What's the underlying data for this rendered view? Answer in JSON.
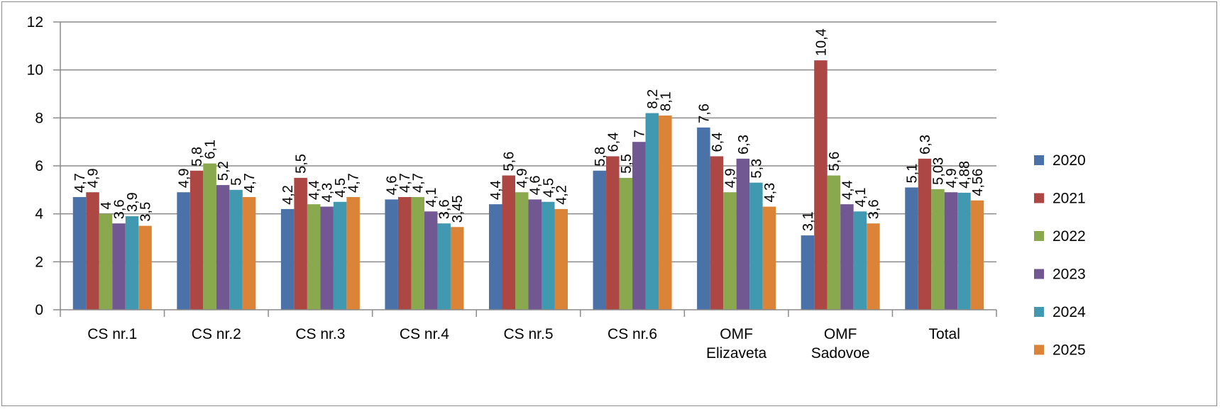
{
  "chart_data": {
    "type": "bar",
    "categories": [
      [
        "CS nr.1"
      ],
      [
        "CS nr.2"
      ],
      [
        "CS nr.3"
      ],
      [
        "CS nr.4"
      ],
      [
        "CS nr.5"
      ],
      [
        "CS nr.6"
      ],
      [
        "OMF",
        "Elizaveta"
      ],
      [
        "OMF",
        "Sadovoe"
      ],
      [
        "Total"
      ]
    ],
    "series": [
      {
        "name": "2020",
        "color": "#4a72a8",
        "values": [
          4.7,
          4.9,
          4.2,
          4.6,
          4.4,
          5.8,
          7.6,
          3.1,
          5.1
        ],
        "labels": [
          "4,7",
          "4,9",
          "4,2",
          "4,6",
          "4,4",
          "5,8",
          "7,6",
          "3,1",
          "5,1"
        ]
      },
      {
        "name": "2021",
        "color": "#ad4744",
        "values": [
          4.9,
          5.8,
          5.5,
          4.7,
          5.6,
          6.4,
          6.4,
          10.4,
          6.3
        ],
        "labels": [
          "4,9",
          "5,8",
          "5,5",
          "4,7",
          "5,6",
          "6,4",
          "6,4",
          "10,4",
          "6,3"
        ]
      },
      {
        "name": "2022",
        "color": "#8aa84e",
        "values": [
          4,
          6.1,
          4.4,
          4.7,
          4.9,
          5.5,
          4.9,
          5.6,
          5.03
        ],
        "labels": [
          "4",
          "6,1",
          "4,4",
          "4,7",
          "4,9",
          "5,5",
          "4,9",
          "5,6",
          "5,03"
        ]
      },
      {
        "name": "2023",
        "color": "#725892",
        "values": [
          3.6,
          5.2,
          4.3,
          4.1,
          4.6,
          7,
          6.3,
          4.4,
          4.9
        ],
        "labels": [
          "3,6",
          "5,2",
          "4,3",
          "4,1",
          "4,6",
          "7",
          "6,3",
          "4,4",
          "4,9"
        ]
      },
      {
        "name": "2024",
        "color": "#4199b1",
        "values": [
          3.9,
          5,
          4.5,
          3.6,
          4.5,
          8.2,
          5.3,
          4.1,
          4.88
        ],
        "labels": [
          "3,9",
          "5",
          "4,5",
          "3,6",
          "4,5",
          "8,2",
          "5,3",
          "4,1",
          "4,88"
        ]
      },
      {
        "name": "2025",
        "color": "#db8437",
        "values": [
          3.5,
          4.7,
          4.7,
          3.45,
          4.2,
          8.1,
          4.3,
          3.6,
          4.56
        ],
        "labels": [
          "3,5",
          "4,7",
          "4,7",
          "3,45",
          "4,2",
          "8,1",
          "4,3",
          "3,6",
          "4,56"
        ]
      }
    ],
    "yticks": [
      "0",
      "2",
      "4",
      "6",
      "8",
      "10",
      "12"
    ],
    "ylim": [
      0,
      12
    ],
    "title": "",
    "xlabel": "",
    "ylabel": "",
    "grid": true,
    "legend_position": "right"
  }
}
